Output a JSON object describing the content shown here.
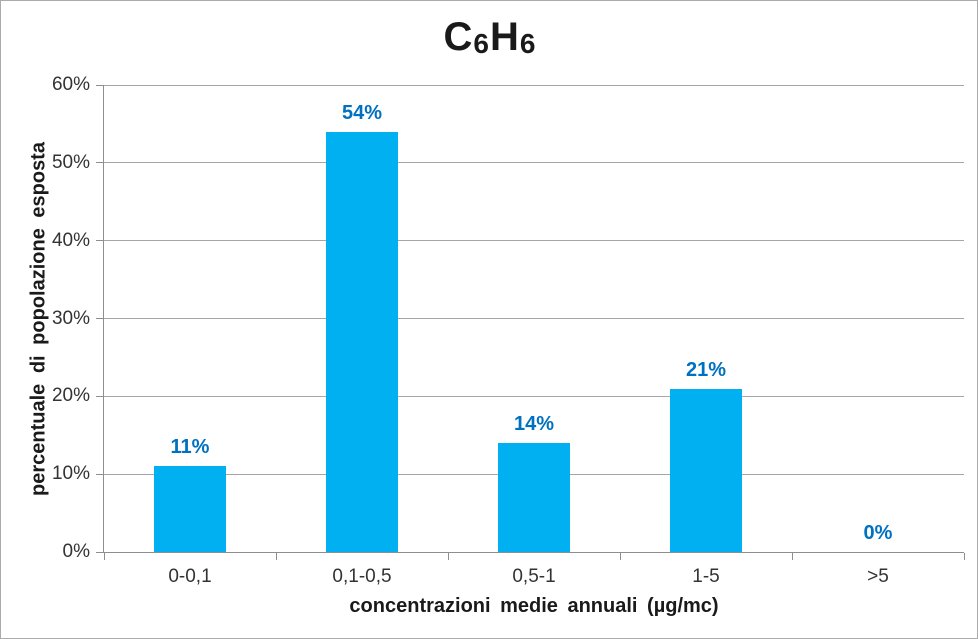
{
  "chart_data": {
    "type": "bar",
    "title": "C6H6",
    "categories": [
      "0-0,1",
      "0,1-0,5",
      "0,5-1",
      "1-5",
      ">5"
    ],
    "values": [
      11,
      54,
      14,
      21,
      0
    ],
    "value_labels": [
      "11%",
      "54%",
      "14%",
      "21%",
      "0%"
    ],
    "xlabel": "concentrazioni medie annuali (µg/mc)",
    "ylabel": "percentuale di popolazione esposta",
    "ylim": [
      0,
      60
    ],
    "ytick_step": 10,
    "ytick_labels": [
      "0%",
      "10%",
      "20%",
      "30%",
      "40%",
      "50%",
      "60%"
    ],
    "grid": "horizontal",
    "legend": "none",
    "colors": {
      "bar": "#00B0F0",
      "value_label": "#0070C0",
      "axis": "#8E8E8E",
      "gridline": "#A6A6A6",
      "tick_text": "#333333",
      "title_text": "#1A1A1A",
      "frame_border": "#ABABAB",
      "background": "#FFFFFF"
    }
  }
}
